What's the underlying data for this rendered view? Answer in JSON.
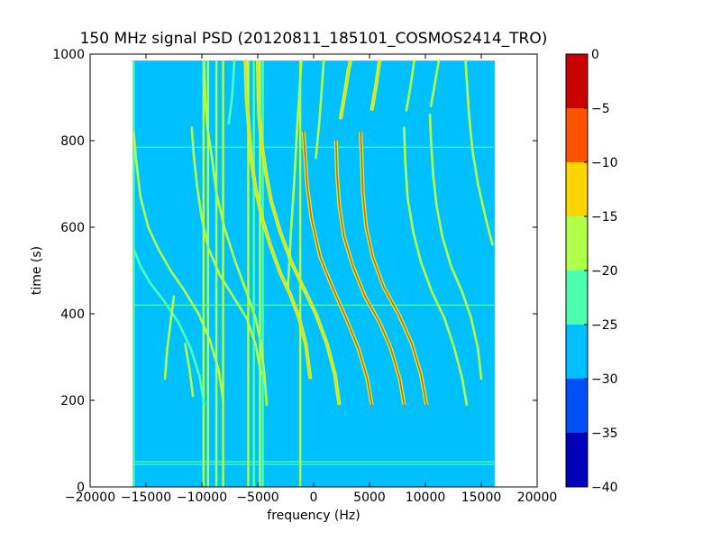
{
  "chart_data": {
    "type": "heatmap",
    "title": "150 MHz signal PSD (20120811_185101_COSMOS2414_TRO)",
    "xlabel": "frequency (Hz)",
    "ylabel": "time (s)",
    "xlim": [
      -20000,
      20000
    ],
    "ylim": [
      0,
      1000
    ],
    "x_ticks": [
      -20000,
      -15000,
      -10000,
      -5000,
      0,
      5000,
      10000,
      15000,
      20000
    ],
    "y_ticks": [
      0,
      200,
      400,
      600,
      800,
      1000
    ],
    "data_extent": {
      "x": [
        -16200,
        16200
      ],
      "y": [
        0,
        985
      ]
    },
    "background_level": -27.5,
    "colorbar": {
      "levels": [
        -40,
        -35,
        -30,
        -25,
        -20,
        -15,
        -10,
        -5,
        0
      ],
      "tick_labels": [
        "−40",
        "−35",
        "−30",
        "−25",
        "−20",
        "−15",
        "−10",
        "−5",
        "0"
      ],
      "colors": [
        "#0000bb",
        "#0050f8",
        "#00c0ff",
        "#4cffb0",
        "#b0ff48",
        "#ffd400",
        "#ff5200",
        "#c80000"
      ]
    },
    "vertical_lines": [
      {
        "x": -16100,
        "level": -22.5,
        "y": [
          0,
          985
        ]
      },
      {
        "x": -9850,
        "level": -17.5,
        "y": [
          0,
          985
        ]
      },
      {
        "x": -9450,
        "level": -17.5,
        "y": [
          0,
          985
        ]
      },
      {
        "x": -8700,
        "level": -17.5,
        "y": [
          0,
          985
        ]
      },
      {
        "x": -8100,
        "level": -17.5,
        "y": [
          0,
          985
        ]
      },
      {
        "x": -5850,
        "level": -17.5,
        "y": [
          0,
          985
        ]
      },
      {
        "x": -5350,
        "level": -22.5,
        "y": [
          0,
          985
        ]
      },
      {
        "x": -4800,
        "level": -17.5,
        "y": [
          0,
          985
        ]
      },
      {
        "x": -4550,
        "level": -22.5,
        "y": [
          0,
          985
        ]
      },
      {
        "x": -1200,
        "level": -17.5,
        "y": [
          0,
          985
        ]
      }
    ],
    "horizontal_lines": [
      {
        "y": 58,
        "level": -22.5,
        "x": [
          -16200,
          16200
        ]
      },
      {
        "y": 52,
        "level": -22.5,
        "x": [
          -16200,
          16200
        ]
      },
      {
        "y": 420,
        "level": -22.5,
        "x": [
          -16200,
          16200
        ]
      },
      {
        "y": 785,
        "level": -22.5,
        "x": [
          -16200,
          16200
        ]
      }
    ],
    "doppler_tracks": [
      {
        "name": "track-1",
        "level": -22.5,
        "points": [
          [
            -9800,
            190
          ],
          [
            -10200,
            255
          ],
          [
            -11000,
            320
          ],
          [
            -12100,
            380
          ],
          [
            -13400,
            430
          ],
          [
            -14600,
            470
          ],
          [
            -15500,
            510
          ],
          [
            -16100,
            550
          ]
        ]
      },
      {
        "name": "track-2",
        "level": -17.5,
        "points": [
          [
            -8100,
            200
          ],
          [
            -8500,
            270
          ],
          [
            -9300,
            340
          ],
          [
            -10300,
            400
          ],
          [
            -11600,
            455
          ],
          [
            -12800,
            500
          ],
          [
            -13900,
            550
          ],
          [
            -14800,
            600
          ],
          [
            -15500,
            670
          ],
          [
            -15900,
            760
          ],
          [
            -16100,
            820
          ]
        ]
      },
      {
        "name": "track-3",
        "level": -17.5,
        "points": [
          [
            -4700,
            260
          ],
          [
            -5200,
            330
          ],
          [
            -6000,
            390
          ],
          [
            -7200,
            440
          ],
          [
            -8400,
            490
          ],
          [
            -9400,
            550
          ],
          [
            -10000,
            620
          ],
          [
            -10400,
            690
          ],
          [
            -10700,
            760
          ],
          [
            -10900,
            830
          ]
        ]
      },
      {
        "name": "track-4",
        "level": -17.5,
        "points": [
          [
            -4200,
            190
          ],
          [
            -4400,
            260
          ],
          [
            -4700,
            330
          ],
          [
            -5200,
            390
          ],
          [
            -6000,
            450
          ],
          [
            -7000,
            520
          ],
          [
            -8000,
            600
          ],
          [
            -8700,
            680
          ],
          [
            -9100,
            760
          ],
          [
            -9500,
            830
          ],
          [
            -9700,
            900
          ],
          [
            -9800,
            985
          ]
        ]
      },
      {
        "name": "track-5",
        "level": -12.5,
        "points": [
          [
            -300,
            250
          ],
          [
            -700,
            330
          ],
          [
            -1300,
            390
          ],
          [
            -2100,
            445
          ],
          [
            -3000,
            495
          ],
          [
            -3900,
            560
          ],
          [
            -4600,
            620
          ],
          [
            -5200,
            690
          ],
          [
            -5600,
            760
          ],
          [
            -5800,
            830
          ],
          [
            -6000,
            900
          ],
          [
            -6100,
            985
          ]
        ]
      },
      {
        "name": "track-6",
        "level": -12.5,
        "points": [
          [
            2300,
            190
          ],
          [
            1900,
            260
          ],
          [
            1200,
            330
          ],
          [
            200,
            400
          ],
          [
            -900,
            460
          ],
          [
            -2000,
            520
          ],
          [
            -3000,
            590
          ],
          [
            -3800,
            660
          ],
          [
            -4300,
            730
          ],
          [
            -4700,
            800
          ],
          [
            -4900,
            870
          ],
          [
            -5000,
            985
          ]
        ]
      },
      {
        "name": "track-7",
        "level": -7.5,
        "points": [
          [
            5200,
            190
          ],
          [
            4800,
            250
          ],
          [
            4000,
            320
          ],
          [
            2900,
            390
          ],
          [
            1700,
            460
          ],
          [
            600,
            530
          ],
          [
            -200,
            620
          ],
          [
            -600,
            700
          ],
          [
            -800,
            780
          ],
          [
            -900,
            820
          ]
        ]
      },
      {
        "name": "track-8",
        "level": -7.5,
        "points": [
          [
            8100,
            190
          ],
          [
            7700,
            250
          ],
          [
            6900,
            320
          ],
          [
            5900,
            380
          ],
          [
            4600,
            440
          ],
          [
            3500,
            510
          ],
          [
            2700,
            580
          ],
          [
            2300,
            650
          ],
          [
            2100,
            720
          ],
          [
            2000,
            800
          ]
        ]
      },
      {
        "name": "track-9",
        "level": -7.5,
        "points": [
          [
            10100,
            190
          ],
          [
            9600,
            260
          ],
          [
            8800,
            330
          ],
          [
            7600,
            400
          ],
          [
            6300,
            460
          ],
          [
            5300,
            530
          ],
          [
            4700,
            600
          ],
          [
            4400,
            680
          ],
          [
            4300,
            760
          ],
          [
            4200,
            820
          ]
        ]
      },
      {
        "name": "track-10",
        "level": -17.5,
        "points": [
          [
            13700,
            190
          ],
          [
            13300,
            250
          ],
          [
            12600,
            320
          ],
          [
            11700,
            390
          ],
          [
            10600,
            450
          ],
          [
            9600,
            520
          ],
          [
            8900,
            590
          ],
          [
            8400,
            670
          ],
          [
            8200,
            750
          ],
          [
            8100,
            830
          ]
        ]
      },
      {
        "name": "track-11",
        "level": -17.5,
        "points": [
          [
            15000,
            250
          ],
          [
            14700,
            320
          ],
          [
            14100,
            390
          ],
          [
            13300,
            450
          ],
          [
            12300,
            510
          ],
          [
            11500,
            580
          ],
          [
            11000,
            650
          ],
          [
            10700,
            720
          ],
          [
            10500,
            800
          ],
          [
            10400,
            860
          ]
        ]
      },
      {
        "name": "track-12",
        "level": -17.5,
        "points": [
          [
            16000,
            560
          ],
          [
            15400,
            620
          ],
          [
            14700,
            700
          ],
          [
            14200,
            780
          ],
          [
            13900,
            860
          ],
          [
            13700,
            940
          ],
          [
            13600,
            985
          ]
        ]
      },
      {
        "name": "track-13",
        "level": -17.5,
        "points": [
          [
            -2300,
            460
          ],
          [
            -2000,
            600
          ],
          [
            -1700,
            720
          ],
          [
            -1500,
            820
          ],
          [
            -1300,
            900
          ],
          [
            -1100,
            985
          ]
        ]
      },
      {
        "name": "track-14",
        "level": -17.5,
        "points": [
          [
            200,
            760
          ],
          [
            500,
            840
          ],
          [
            700,
            910
          ],
          [
            900,
            985
          ]
        ]
      },
      {
        "name": "track-15",
        "level": -12.5,
        "points": [
          [
            2400,
            850
          ],
          [
            2800,
            910
          ],
          [
            3100,
            960
          ],
          [
            3300,
            985
          ]
        ]
      },
      {
        "name": "track-16",
        "level": -12.5,
        "points": [
          [
            5200,
            870
          ],
          [
            5600,
            930
          ],
          [
            5900,
            985
          ]
        ]
      },
      {
        "name": "track-17",
        "level": -17.5,
        "points": [
          [
            8300,
            870
          ],
          [
            8700,
            930
          ],
          [
            9000,
            985
          ]
        ]
      },
      {
        "name": "track-18",
        "level": -17.5,
        "points": [
          [
            10500,
            880
          ],
          [
            10900,
            940
          ],
          [
            11200,
            985
          ]
        ]
      },
      {
        "name": "track-19",
        "level": -17.5,
        "points": [
          [
            -12500,
            440
          ],
          [
            -12800,
            380
          ],
          [
            -13100,
            320
          ],
          [
            -13300,
            250
          ]
        ]
      },
      {
        "name": "track-20",
        "level": -17.5,
        "points": [
          [
            -10800,
            210
          ],
          [
            -11100,
            270
          ],
          [
            -11500,
            330
          ]
        ]
      },
      {
        "name": "track-21",
        "level": -22.5,
        "points": [
          [
            -7600,
            840
          ],
          [
            -7300,
            900
          ],
          [
            -7100,
            985
          ]
        ]
      }
    ]
  }
}
